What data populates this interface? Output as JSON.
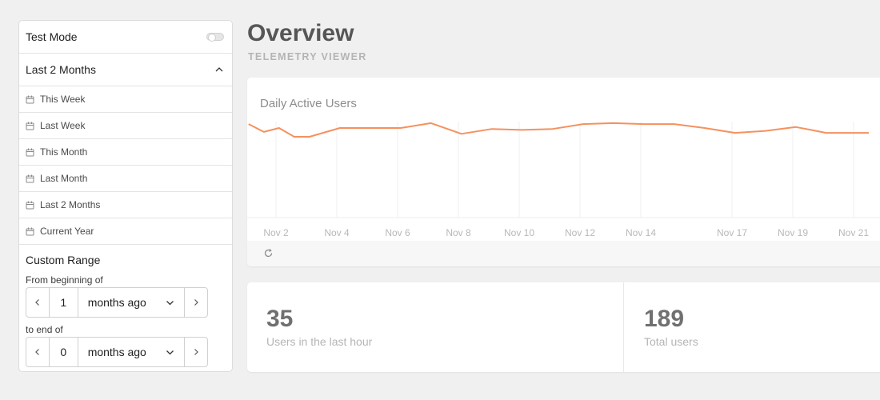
{
  "sidebar": {
    "test_mode_label": "Test Mode",
    "test_mode_on": false,
    "range_selected": "Last 2 Months",
    "presets": [
      {
        "label": "This Week"
      },
      {
        "label": "Last Week"
      },
      {
        "label": "This Month"
      },
      {
        "label": "Last Month"
      },
      {
        "label": "Last 2 Months"
      },
      {
        "label": "Current Year"
      }
    ],
    "custom": {
      "title": "Custom Range",
      "from_label": "From beginning of",
      "from_value": "1",
      "from_unit": "months ago",
      "to_label": "to end of",
      "to_value": "0",
      "to_unit": "months ago"
    }
  },
  "header": {
    "title": "Overview",
    "subtitle": "TELEMETRY VIEWER"
  },
  "chart_data": {
    "type": "line",
    "title": "Daily Active Users",
    "tick_labels": [
      "Nov 2",
      "Nov 4",
      "Nov 6",
      "Nov 8",
      "Nov 10",
      "Nov 12",
      "Nov 14",
      "Nov 17",
      "Nov 19",
      "Nov 21"
    ],
    "x": [
      1.1,
      1.6,
      2.1,
      2.6,
      3.1,
      4.1,
      5.1,
      6.1,
      7.1,
      8.1,
      9.1,
      10.1,
      11.1,
      12.1,
      13.1,
      14.1,
      15.1,
      16.1,
      17.1,
      18.1,
      19.1,
      19.6,
      20.1,
      21.1,
      21.5
    ],
    "series": [
      {
        "values": [
          0.95,
          0.87,
          0.91,
          0.82,
          0.82,
          0.91,
          0.91,
          0.91,
          0.96,
          0.85,
          0.9,
          0.89,
          0.9,
          0.95,
          0.96,
          0.95,
          0.95,
          0.91,
          0.86,
          0.88,
          0.92,
          0.89,
          0.86,
          0.86,
          0.86
        ]
      }
    ],
    "grid": true,
    "color": "#f5915f"
  },
  "stats": [
    {
      "value": "35",
      "label": "Users in the last hour"
    },
    {
      "value": "189",
      "label": "Total users"
    }
  ]
}
